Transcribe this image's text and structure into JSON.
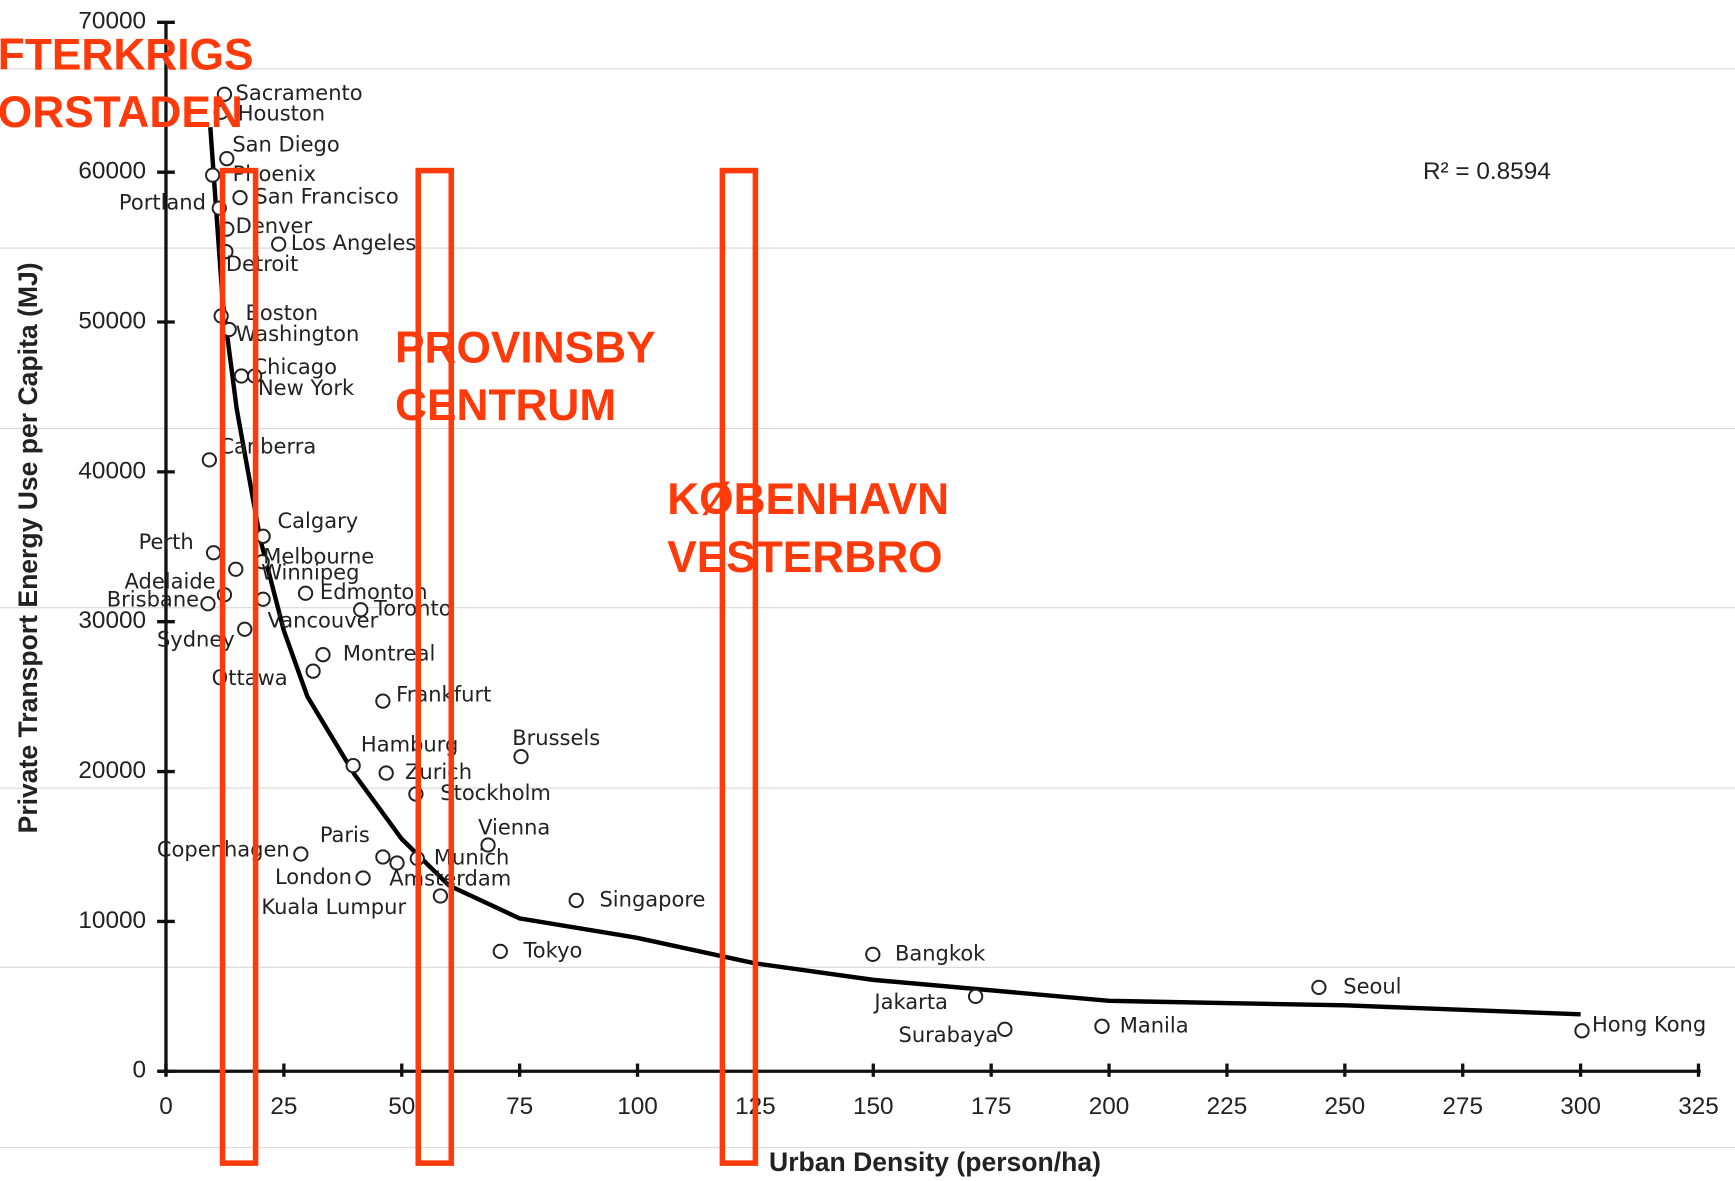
{
  "chart_data": {
    "type": "scatter",
    "xlabel": "Urban Density (person/ha)",
    "ylabel": "Private Transport Energy Use per Capita (MJ)",
    "xlim": [
      0,
      325
    ],
    "xticks": [
      0,
      25,
      50,
      75,
      100,
      125,
      150,
      175,
      200,
      225,
      250,
      275,
      300,
      325
    ],
    "ylim": [
      0,
      70000
    ],
    "yticks": [
      0,
      10000,
      20000,
      30000,
      40000,
      50000,
      60000,
      70000
    ],
    "r2_label": "R² = 0.8594",
    "points": {
      "labels": [
        "Sacramento",
        "Houston",
        "San Diego",
        "Phoenix",
        "San Francisco",
        "Portland",
        "Denver",
        "Los Angeles",
        "Detroit",
        "Boston",
        "Washington",
        "Chicago",
        "New York",
        "Canberra",
        "Calgary",
        "Perth",
        "Melbourne",
        "Winnipeg",
        "Adelaide",
        "Edmonton",
        "Vancouver",
        "Brisbane",
        "Toronto",
        "Sydney",
        "Montreal",
        "Ottawa",
        "Frankfurt",
        "Brussels",
        "Hamburg",
        "Zurich",
        "Stockholm",
        "Vienna",
        "Copenhagen",
        "Paris",
        "Munich",
        "Amsterdam",
        "London",
        "Kuala Lumpur",
        "Singapore",
        "Tokyo",
        "Bangkok",
        "Seoul",
        "Jakarta",
        "Manila",
        "Surabaya",
        "Hong Kong"
      ],
      "x": [
        12.4,
        11.7,
        12.9,
        9.9,
        15.7,
        11.3,
        12.9,
        23.9,
        12.7,
        11.7,
        13.4,
        16,
        18.8,
        9.2,
        20.6,
        10.1,
        20.4,
        14.8,
        12.4,
        29.6,
        20.6,
        8.9,
        41.3,
        16.7,
        33.3,
        31.2,
        46,
        75.3,
        39.7,
        46.7,
        53,
        68.3,
        28.6,
        46,
        53.3,
        49,
        41.8,
        58.2,
        87,
        70.9,
        149.9,
        244.5,
        171.7,
        198.5,
        177.9,
        300.3
      ],
      "values": [
        65200,
        64000,
        60900,
        59800,
        58300,
        57600,
        56200,
        55200,
        54700,
        50400,
        49500,
        46400,
        46400,
        40800,
        35700,
        34600,
        34000,
        33500,
        31800,
        31900,
        31500,
        31200,
        30800,
        29500,
        27800,
        26700,
        24700,
        21000,
        20400,
        19900,
        18500,
        15100,
        14500,
        14300,
        14200,
        13900,
        12900,
        11700,
        11400,
        8000,
        7800,
        5600,
        5000,
        3000,
        2800,
        2700
      ]
    },
    "trend": {
      "x": [
        9.4,
        12,
        15,
        20,
        25,
        30,
        40,
        50,
        60,
        75,
        100,
        125,
        150,
        200,
        250,
        300
      ],
      "values": [
        63000,
        51500,
        44200,
        35500,
        29400,
        25000,
        19800,
        15500,
        12400,
        10200,
        8900,
        7200,
        6100,
        4700,
        4400,
        3800
      ]
    },
    "annotations": [
      {
        "lines": [
          "FTERKRIGS",
          "ORSTADEN"
        ],
        "band": [
          12,
          19
        ]
      },
      {
        "lines": [
          "PROVINSBY",
          "CENTRUM"
        ],
        "band": [
          53.5,
          60.5
        ]
      },
      {
        "lines": [
          "KØBENHAVN",
          "VESTERBRO"
        ],
        "band": [
          118,
          125
        ]
      }
    ]
  }
}
